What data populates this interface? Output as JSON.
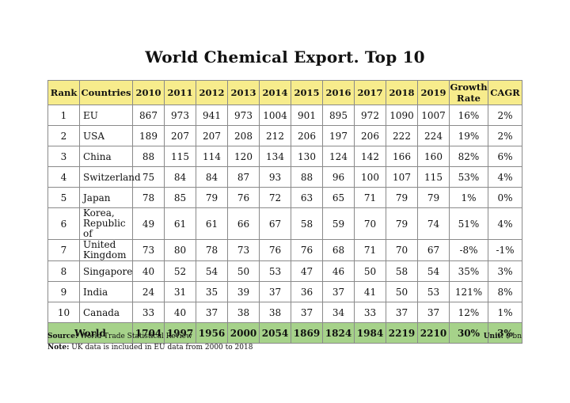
{
  "title": "World Chemical Export. Top 10",
  "table": {
    "headers": [
      "Rank",
      "Countries",
      "2010",
      "2011",
      "2012",
      "2013",
      "2014",
      "2015",
      "2016",
      "2017",
      "2018",
      "2019",
      "Growth Rate",
      "CAGR"
    ],
    "rows": [
      {
        "rank": "1",
        "country": "EU",
        "values": [
          "867",
          "973",
          "941",
          "973",
          "1004",
          "901",
          "895",
          "972",
          "1090",
          "1007"
        ],
        "growth": "16%",
        "cagr": "2%"
      },
      {
        "rank": "2",
        "country": "USA",
        "values": [
          "189",
          "207",
          "207",
          "208",
          "212",
          "206",
          "197",
          "206",
          "222",
          "224"
        ],
        "growth": "19%",
        "cagr": "2%"
      },
      {
        "rank": "3",
        "country": "China",
        "values": [
          "88",
          "115",
          "114",
          "120",
          "134",
          "130",
          "124",
          "142",
          "166",
          "160"
        ],
        "growth": "82%",
        "cagr": "6%"
      },
      {
        "rank": "4",
        "country": "Switzerland",
        "values": [
          "75",
          "84",
          "84",
          "87",
          "93",
          "88",
          "96",
          "100",
          "107",
          "115"
        ],
        "growth": "53%",
        "cagr": "4%"
      },
      {
        "rank": "5",
        "country": "Japan",
        "values": [
          "78",
          "85",
          "79",
          "76",
          "72",
          "63",
          "65",
          "71",
          "79",
          "79"
        ],
        "growth": "1%",
        "cagr": "0%"
      },
      {
        "rank": "6",
        "country": "Korea, Republic of",
        "values": [
          "49",
          "61",
          "61",
          "66",
          "67",
          "58",
          "59",
          "70",
          "79",
          "74"
        ],
        "growth": "51%",
        "cagr": "4%"
      },
      {
        "rank": "7",
        "country": "United Kingdom",
        "values": [
          "73",
          "80",
          "78",
          "73",
          "76",
          "76",
          "68",
          "71",
          "70",
          "67"
        ],
        "growth": "-8%",
        "cagr": "-1%"
      },
      {
        "rank": "8",
        "country": "Singapore",
        "values": [
          "40",
          "52",
          "54",
          "50",
          "53",
          "47",
          "46",
          "50",
          "58",
          "54"
        ],
        "growth": "35%",
        "cagr": "3%"
      },
      {
        "rank": "9",
        "country": "India",
        "values": [
          "24",
          "31",
          "35",
          "39",
          "37",
          "36",
          "37",
          "41",
          "50",
          "53"
        ],
        "growth": "121%",
        "cagr": "8%"
      },
      {
        "rank": "10",
        "country": "Canada",
        "values": [
          "33",
          "40",
          "37",
          "38",
          "38",
          "37",
          "34",
          "33",
          "37",
          "37"
        ],
        "growth": "12%",
        "cagr": "1%"
      }
    ],
    "total": {
      "label": "World",
      "values": [
        "1704",
        "1997",
        "1956",
        "2000",
        "2054",
        "1869",
        "1824",
        "1984",
        "2219",
        "2210"
      ],
      "growth": "30%",
      "cagr": "3%"
    }
  },
  "footer": {
    "source_label": "Source:",
    "source_text": " World Trade Statistical Review",
    "unit_label": "Unit:",
    "unit_text": " $ bn",
    "note_label": "Note:",
    "note_text": " UK data is included in EU data from 2000 to 2018"
  },
  "colors": {
    "header_bg": "#f7ec8c",
    "total_bg": "#a6d28a",
    "border": "#8a8a8a"
  }
}
